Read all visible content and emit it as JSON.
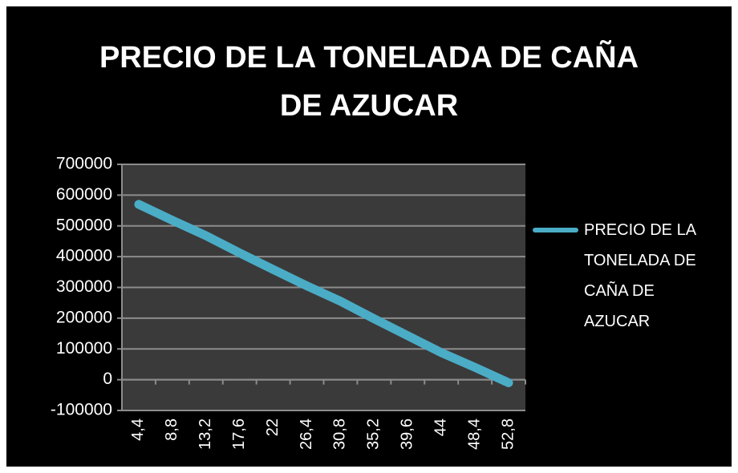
{
  "chart_data": {
    "type": "line",
    "title": "PRECIO DE LA TONELADA DE CAÑA DE AZUCAR",
    "categories": [
      "4,4",
      "8,8",
      "13,2",
      "17,6",
      "22",
      "26,4",
      "30,8",
      "35,2",
      "39,6",
      "44",
      "48,4",
      "52,8"
    ],
    "series": [
      {
        "name": "PRECIO DE LA TONELADA DE CAÑA DE AZUCAR",
        "color": "#4bacc6",
        "values": [
          570000,
          518000,
          468000,
          412000,
          358000,
          305000,
          255000,
          198000,
          143000,
          88000,
          40000,
          -10000
        ]
      }
    ],
    "ylim": [
      -100000,
      700000
    ],
    "yticks": [
      -100000,
      0,
      100000,
      200000,
      300000,
      400000,
      500000,
      600000,
      700000
    ],
    "grid": true,
    "legend": "right"
  }
}
